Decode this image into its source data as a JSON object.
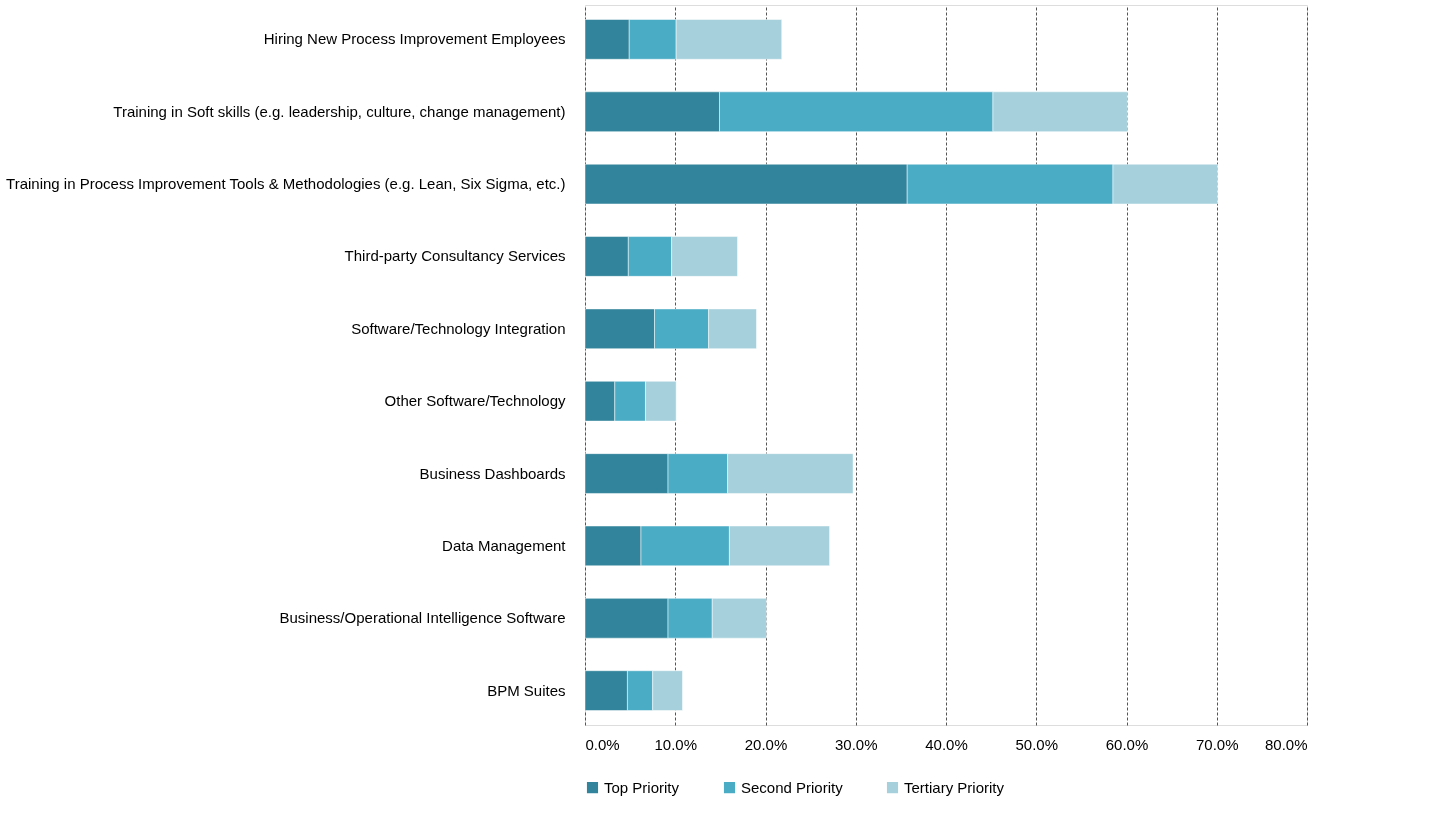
{
  "chart_data": {
    "type": "bar",
    "orientation": "horizontal",
    "stacked": true,
    "categories": [
      "Hiring New Process Improvement Employees",
      "Training in Soft skills (e.g. leadership, culture, change management)",
      "Training in Process Improvement Tools & Methodologies (e.g. Lean, Six Sigma, etc.)",
      "Third-party Consultancy Services",
      "Software/Technology Integration",
      "Other Software/Technology",
      "Business Dashboards",
      "Data Management",
      "Business/Operational Intelligence Software",
      "BPM Suites"
    ],
    "series": [
      {
        "name": "Top Priority",
        "color": "#31849b",
        "values": [
          4.9,
          14.9,
          35.7,
          4.8,
          7.7,
          3.3,
          9.2,
          6.2,
          9.2,
          4.7
        ]
      },
      {
        "name": "Second Priority",
        "color": "#4bacc6",
        "values": [
          5.2,
          30.3,
          22.8,
          4.8,
          6.0,
          3.4,
          6.6,
          9.8,
          4.9,
          2.8
        ]
      },
      {
        "name": "Tertiary Priority",
        "color": "#a5d0dc",
        "values": [
          11.7,
          14.9,
          11.6,
          7.3,
          5.3,
          3.4,
          13.9,
          11.1,
          6.0,
          3.3
        ]
      }
    ],
    "xlim": [
      0,
      80
    ],
    "xticks": [
      {
        "value": 0,
        "label": "0.0%"
      },
      {
        "value": 10,
        "label": "10.0%"
      },
      {
        "value": 20,
        "label": "20.0%"
      },
      {
        "value": 30,
        "label": "30.0%"
      },
      {
        "value": 40,
        "label": "40.0%"
      },
      {
        "value": 50,
        "label": "50.0%"
      },
      {
        "value": 60,
        "label": "60.0%"
      },
      {
        "value": 70,
        "label": "70.0%"
      },
      {
        "value": 80,
        "label": "80.0%"
      }
    ],
    "grid": "x",
    "legend": "bottom"
  }
}
